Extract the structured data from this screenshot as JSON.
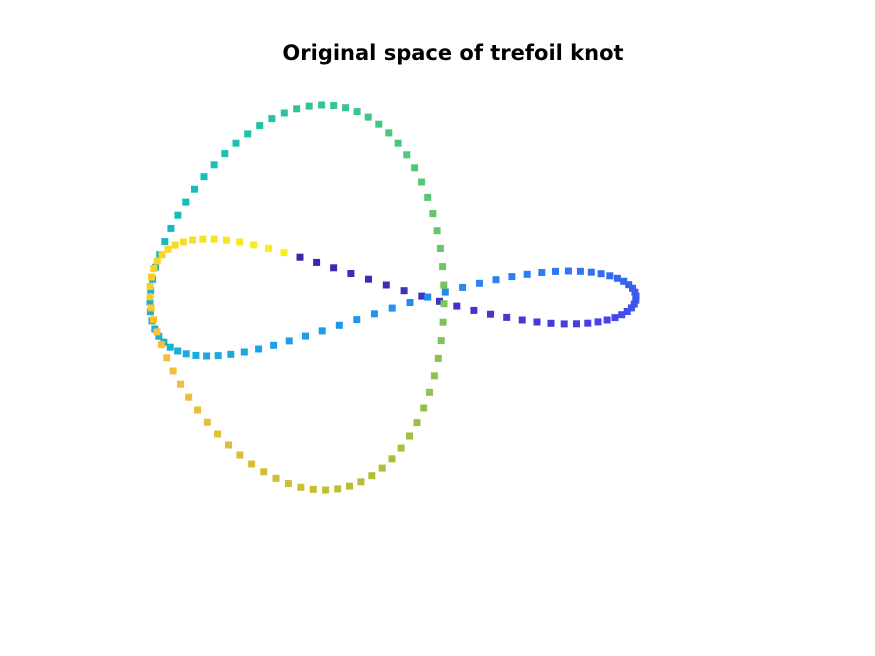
{
  "chart_data": {
    "type": "scatter",
    "title": "Original space of trefoil knot",
    "xlabel": "",
    "ylabel": "",
    "axes_visible": false,
    "grid": false,
    "marker": "square",
    "colormap": "parula",
    "curve": "trefoil knot",
    "parametrization": {
      "x": "sin(t) + 2 sin(2t)",
      "y": "cos(t) - 2 cos(2t)",
      "z": "-sin(3t)",
      "t_range": [
        0,
        6.2832
      ],
      "n_points": 160
    },
    "view": {
      "azimuth_deg": 30,
      "elevation_deg": 30
    },
    "color_by": "t"
  }
}
